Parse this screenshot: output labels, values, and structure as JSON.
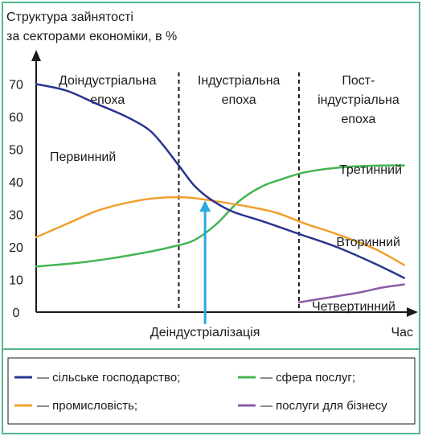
{
  "chart_data": {
    "type": "line",
    "title": "Структура зайнятості\nза секторами економіки, в %",
    "xlabel": "Час",
    "ylabel": "",
    "ylim": [
      0,
      80
    ],
    "yticks": [
      0,
      10,
      20,
      30,
      40,
      50,
      60,
      70
    ],
    "x_range": [
      0,
      100
    ],
    "grid": false,
    "eras": [
      {
        "label": "Доіндустріальна\nепоха"
      },
      {
        "label": "Індустріальна\nепоха"
      },
      {
        "label": "Пост-\nіндустріальна\nепоха"
      }
    ],
    "era_dividers_x": [
      38,
      70
    ],
    "series": [
      {
        "name": "Первинний",
        "color": "#2a3590",
        "points": [
          [
            0,
            70
          ],
          [
            8,
            68
          ],
          [
            16,
            64
          ],
          [
            24,
            60
          ],
          [
            30,
            56
          ],
          [
            34,
            51
          ],
          [
            38,
            45
          ],
          [
            42,
            39
          ],
          [
            46,
            35
          ],
          [
            52,
            31
          ],
          [
            60,
            28
          ],
          [
            70,
            24
          ],
          [
            80,
            20
          ],
          [
            90,
            15
          ],
          [
            98,
            10.5
          ]
        ]
      },
      {
        "name": "Вторинний",
        "color": "#f0a030",
        "points": [
          [
            0,
            23
          ],
          [
            8,
            27
          ],
          [
            16,
            31
          ],
          [
            24,
            33.5
          ],
          [
            32,
            35
          ],
          [
            40,
            35.2
          ],
          [
            48,
            34
          ],
          [
            56,
            32.5
          ],
          [
            64,
            30.5
          ],
          [
            72,
            27
          ],
          [
            80,
            24
          ],
          [
            90,
            19.5
          ],
          [
            98,
            14.5
          ]
        ]
      },
      {
        "name": "Третинний",
        "color": "#44b552",
        "points": [
          [
            0,
            14
          ],
          [
            10,
            15
          ],
          [
            20,
            16.5
          ],
          [
            30,
            18.5
          ],
          [
            36,
            20
          ],
          [
            42,
            22
          ],
          [
            48,
            27
          ],
          [
            54,
            34
          ],
          [
            60,
            38.5
          ],
          [
            66,
            41
          ],
          [
            72,
            43
          ],
          [
            82,
            44.5
          ],
          [
            92,
            45
          ],
          [
            98,
            45
          ]
        ]
      },
      {
        "name": "Четвертинний",
        "color": "#8a5aa8",
        "points": [
          [
            70,
            3
          ],
          [
            78,
            4.5
          ],
          [
            86,
            6
          ],
          [
            92,
            7.5
          ],
          [
            98,
            8.5
          ]
        ]
      }
    ],
    "annotations": [
      {
        "text": "Деіндустріалізація",
        "arrow_color": "#29a9e0",
        "x": 45,
        "y": 35
      }
    ]
  },
  "legend": {
    "items": [
      {
        "label": "— сільське господарство;",
        "color": "#2a3590"
      },
      {
        "label": "— сфера послуг;",
        "color": "#44b552"
      },
      {
        "label": "— промисловість;",
        "color": "#f0a030"
      },
      {
        "label": "— послуги для бізнесу",
        "color": "#8a5aa8"
      }
    ]
  },
  "colors": {
    "border": "#52b78a",
    "axis": "#1a1a1a",
    "arrow": "#29a9e0"
  }
}
